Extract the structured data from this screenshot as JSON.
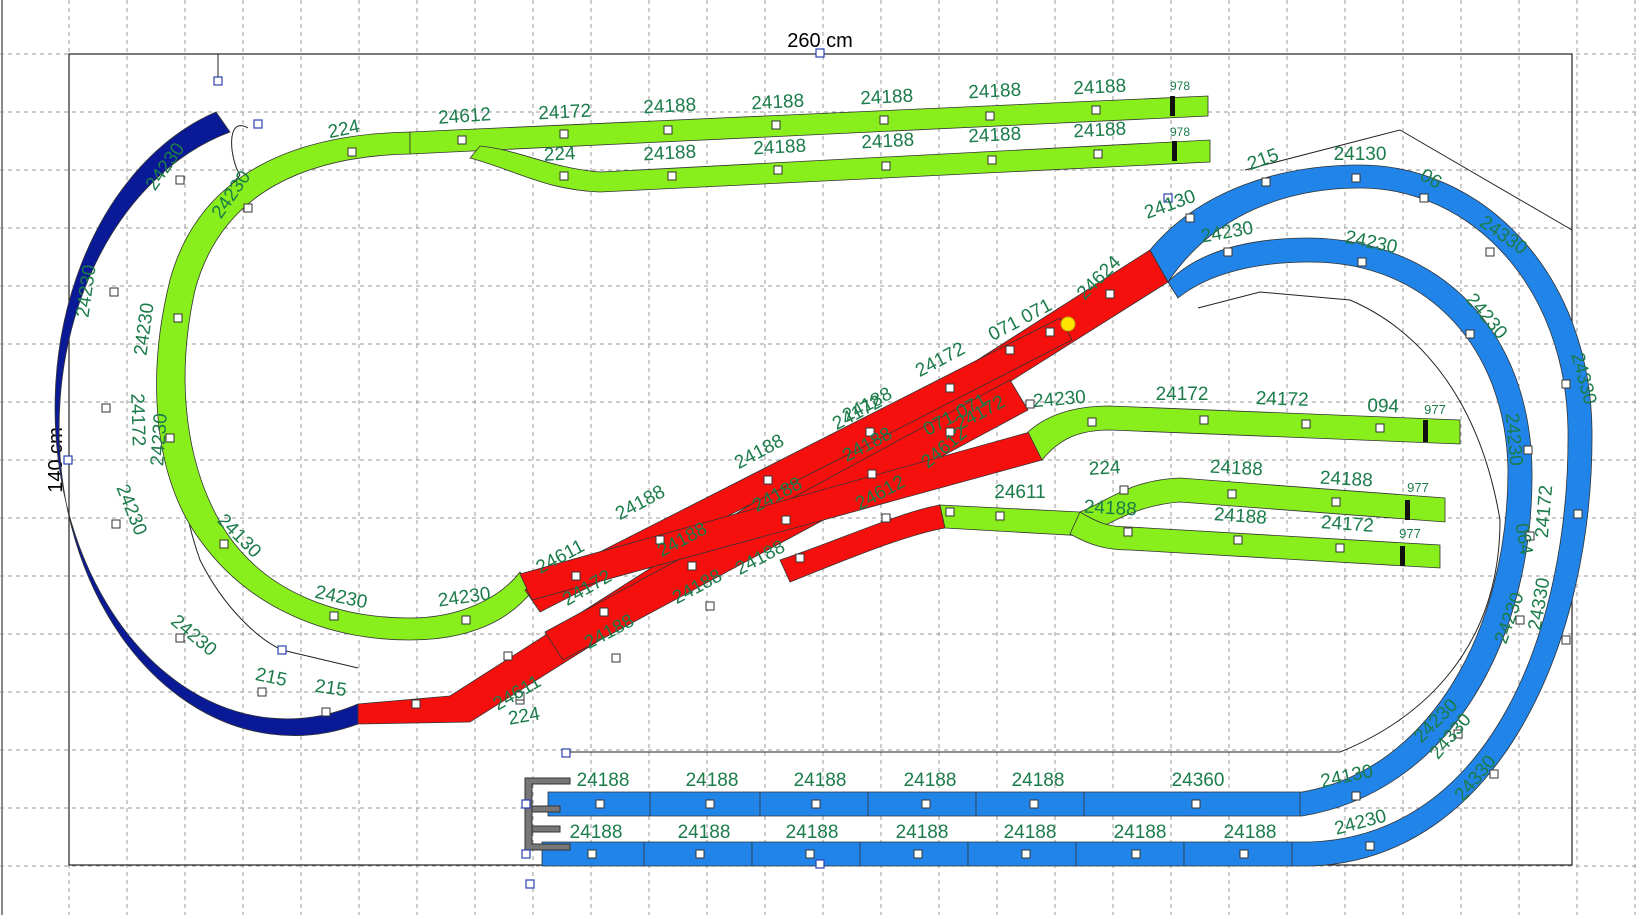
{
  "dimensions": {
    "width_label": "260 cm",
    "height_label": "140 cm"
  },
  "colors": {
    "light_green": "#88ee1c",
    "red": "#f5100e",
    "blue": "#2084e8",
    "dark_blue": "#0a1a96",
    "label": "#1b7c4a",
    "grid": "#9a9a9a"
  },
  "icons": [
    "buffer-stop-icon",
    "handle-icon",
    "end-bumper-icon"
  ],
  "labels": [
    {
      "t": "24230"
    },
    {
      "t": "24230"
    },
    {
      "t": "24172"
    },
    {
      "t": "24230"
    },
    {
      "t": "24230"
    },
    {
      "t": "215"
    },
    {
      "t": "215"
    },
    {
      "t": "24230"
    },
    {
      "t": "24230"
    },
    {
      "t": "24130"
    },
    {
      "t": "24230"
    },
    {
      "t": "24230"
    },
    {
      "t": "24230"
    },
    {
      "t": "24230"
    },
    {
      "t": "224"
    },
    {
      "t": "24612"
    },
    {
      "t": "24172"
    },
    {
      "t": "24188"
    },
    {
      "t": "24188"
    },
    {
      "t": "24188"
    },
    {
      "t": "24188"
    },
    {
      "t": "24188"
    },
    {
      "t": "978"
    },
    {
      "t": "224"
    },
    {
      "t": "24188"
    },
    {
      "t": "24188"
    },
    {
      "t": "24188"
    },
    {
      "t": "24188"
    },
    {
      "t": "24188"
    },
    {
      "t": "978"
    },
    {
      "t": "24611"
    },
    {
      "t": "24611"
    },
    {
      "t": "24611"
    },
    {
      "t": "224"
    },
    {
      "t": "24172"
    },
    {
      "t": "24188"
    },
    {
      "t": "24188"
    },
    {
      "t": "24188"
    },
    {
      "t": "24188"
    },
    {
      "t": "24188"
    },
    {
      "t": "24172"
    },
    {
      "t": "24172"
    },
    {
      "t": "071 071"
    },
    {
      "t": "24624"
    },
    {
      "t": "24188"
    },
    {
      "t": "24188"
    },
    {
      "t": "24188"
    },
    {
      "t": "24172"
    },
    {
      "t": "071 071"
    },
    {
      "t": "24612"
    },
    {
      "t": "24188"
    },
    {
      "t": "071 071"
    },
    {
      "t": "24612"
    },
    {
      "t": "24611"
    },
    {
      "t": "24230"
    },
    {
      "t": "24172"
    },
    {
      "t": "24172"
    },
    {
      "t": "094"
    },
    {
      "t": "977"
    },
    {
      "t": "224"
    },
    {
      "t": "24188"
    },
    {
      "t": "24188"
    },
    {
      "t": "977"
    },
    {
      "t": "24188"
    },
    {
      "t": "24188"
    },
    {
      "t": "24172"
    },
    {
      "t": "977"
    },
    {
      "t": "215"
    },
    {
      "t": "24130"
    },
    {
      "t": "06"
    },
    {
      "t": "24330"
    },
    {
      "t": "24330"
    },
    {
      "t": "24330"
    },
    {
      "t": "24330"
    },
    {
      "t": "24330"
    },
    {
      "t": "24130"
    },
    {
      "t": "24230"
    },
    {
      "t": "24230"
    },
    {
      "t": "24230"
    },
    {
      "t": "24230"
    },
    {
      "t": "24172"
    },
    {
      "t": "064"
    },
    {
      "t": "24230"
    },
    {
      "t": "24230"
    },
    {
      "t": "24188"
    },
    {
      "t": "24188"
    },
    {
      "t": "24188"
    },
    {
      "t": "24188"
    },
    {
      "t": "24188"
    },
    {
      "t": "24360"
    },
    {
      "t": "24130"
    },
    {
      "t": "24188"
    },
    {
      "t": "24188"
    },
    {
      "t": "24188"
    },
    {
      "t": "24188"
    },
    {
      "t": "24188"
    },
    {
      "t": "24188"
    },
    {
      "t": "24188"
    },
    {
      "t": "24230"
    }
  ]
}
